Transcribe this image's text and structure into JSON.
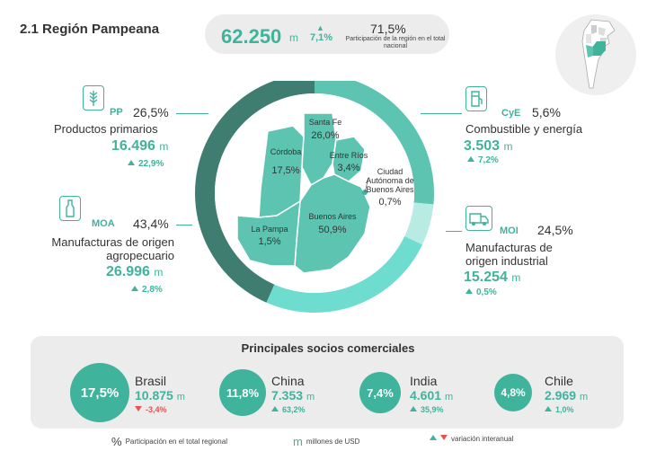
{
  "header": {
    "title": "2.1 Región Pampeana",
    "total_value": "62.250",
    "total_unit": "m",
    "total_var": "7,1%",
    "share_value": "71,5%",
    "share_label": "Participación de la región en el total nacional"
  },
  "sectors": {
    "pp": {
      "code": "PP",
      "pct": "26,5%",
      "label": "Productos primarios",
      "value": "16.496",
      "unit": "m",
      "var": "22,9%"
    },
    "moa": {
      "code": "MOA",
      "pct": "43,4%",
      "label_line1": "Manufacturas de origen",
      "label_line2": "agropecuario",
      "value": "26.996",
      "unit": "m",
      "var": "2,8%"
    },
    "cye": {
      "code": "CyE",
      "pct": "5,6%",
      "label": "Combustible y energía",
      "value": "3.503",
      "unit": "m",
      "var": "7,2%"
    },
    "moi": {
      "code": "MOI",
      "pct": "24,5%",
      "label_line1": "Manufacturas de",
      "label_line2": "origen industrial",
      "value": "15.254",
      "unit": "m",
      "var": "0,5%"
    }
  },
  "provinces": {
    "santa_fe": {
      "name": "Santa Fe",
      "pct": "26,0%"
    },
    "cordoba": {
      "name": "Córdoba",
      "pct": "17,5%"
    },
    "entre_rios": {
      "name": "Entre Ríos",
      "pct": "3,4%"
    },
    "caba": {
      "name_line1": "Ciudad",
      "name_line2": "Autónoma de",
      "name_line3": "Buenos Aires",
      "pct": "0,7%"
    },
    "buenos_aires": {
      "name": "Buenos Aires",
      "pct": "50,9%"
    },
    "la_pampa": {
      "name": "La Pampa",
      "pct": "1,5%"
    }
  },
  "partners": {
    "title": "Principales socios comerciales",
    "items": [
      {
        "name": "Brasil",
        "share": "17,5%",
        "share_num": 17.5,
        "value": "10.875",
        "unit": "m",
        "var": "-3,4%",
        "direction": "down"
      },
      {
        "name": "China",
        "share": "11,8%",
        "share_num": 11.8,
        "value": "7.353",
        "unit": "m",
        "var": "63,2%",
        "direction": "up"
      },
      {
        "name": "India",
        "share": "7,4%",
        "share_num": 7.4,
        "value": "4.601",
        "unit": "m",
        "var": "35,9%",
        "direction": "up"
      },
      {
        "name": "Chile",
        "share": "4,8%",
        "share_num": 4.8,
        "value": "2.969",
        "unit": "m",
        "var": "1,0%",
        "direction": "up"
      }
    ]
  },
  "legend": {
    "pct_symbol": "%",
    "pct_label": "Participación en el total regional",
    "m_symbol": "m",
    "m_label": "millones de USD",
    "var_label": "variación interanual"
  },
  "colors": {
    "teal": "#3fb39c",
    "dark_teal": "#3e7d6f",
    "mid_teal": "#5ec4b2",
    "light_teal": "#b8ebe3",
    "bright_teal": "#6fdcd0",
    "red": "#e25555"
  }
}
